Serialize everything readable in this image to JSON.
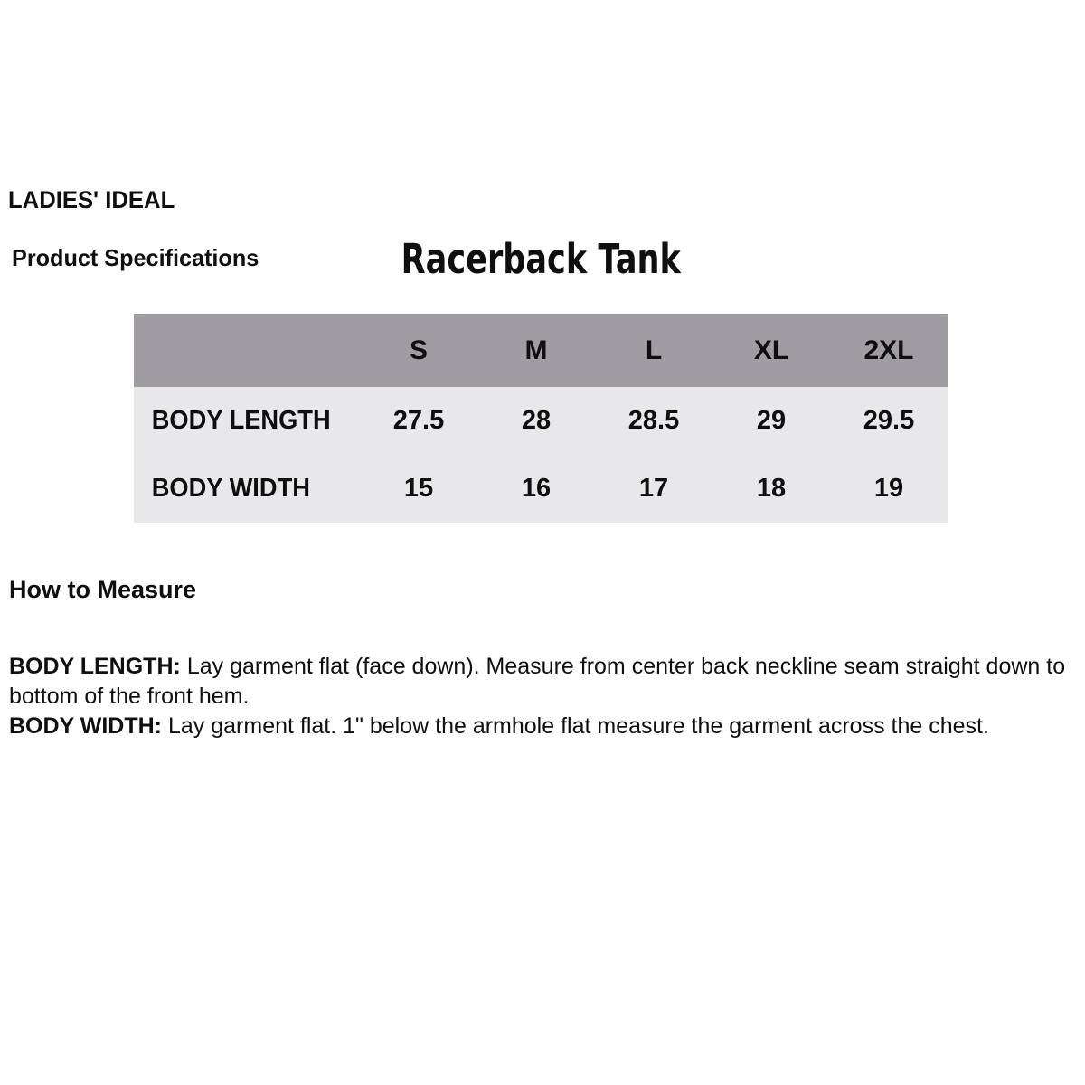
{
  "page": {
    "brand": "LADIES' IDEAL",
    "section_title": "Product Specifications",
    "product_name": "Racerback Tank"
  },
  "spec_table": {
    "header_bg": "#9f9da1",
    "body_bg": "#e8e7e9",
    "text_color": "#0f0f0f",
    "size_headers": [
      "S",
      "M",
      "L",
      "XL",
      "2XL"
    ],
    "rows": [
      {
        "label": "BODY LENGTH",
        "values": [
          "27.5",
          "28",
          "28.5",
          "29",
          "29.5"
        ]
      },
      {
        "label": "BODY WIDTH",
        "values": [
          "15",
          "16",
          "17",
          "18",
          "19"
        ]
      }
    ]
  },
  "how_to_measure": {
    "heading": "How to Measure",
    "notes": [
      {
        "label": "BODY LENGTH:",
        "text": "Lay garment flat (face down). Measure from center back neckline seam straight down to bottom of the front hem."
      },
      {
        "label": "BODY WIDTH:",
        "text": "Lay garment flat. 1\" below the armhole flat measure the garment across the chest."
      }
    ]
  },
  "chart_data": {
    "type": "table",
    "title": "Racerback Tank",
    "columns": [
      "",
      "S",
      "M",
      "L",
      "XL",
      "2XL"
    ],
    "rows": [
      [
        "BODY LENGTH",
        "27.5",
        "28",
        "28.5",
        "29",
        "29.5"
      ],
      [
        "BODY WIDTH",
        "15",
        "16",
        "17",
        "18",
        "19"
      ]
    ]
  }
}
